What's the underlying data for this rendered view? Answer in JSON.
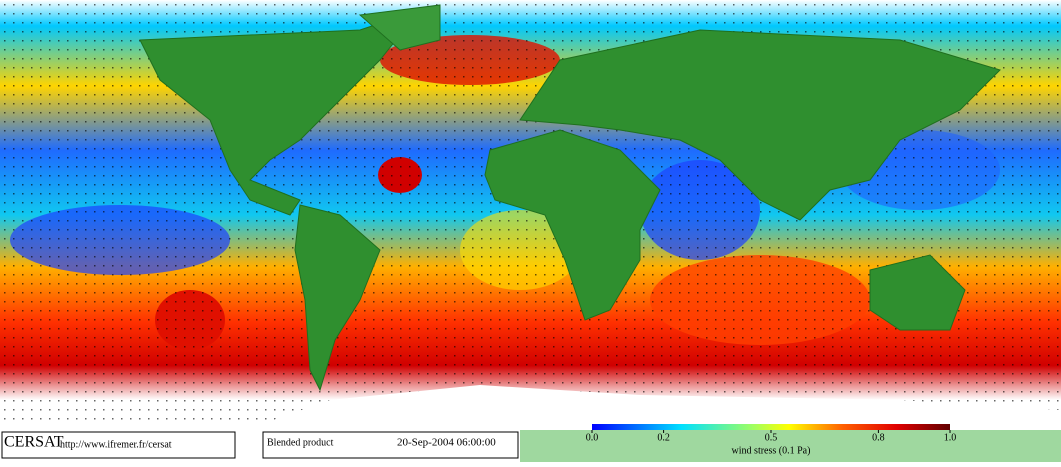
{
  "logo": "CERSAT",
  "url": "http://www.ifremer.fr/cersat",
  "product": "Blended product",
  "timestamp": "20-Sep-2004 06:00:00",
  "colorbar": {
    "label": "wind stress (0.1 Pa)",
    "range": [
      0,
      1
    ],
    "ticks": [
      {
        "value": 0,
        "label": "0.0"
      },
      0.2,
      0.5,
      0.8,
      {
        "value": 1,
        "label": "1.0"
      }
    ]
  }
}
